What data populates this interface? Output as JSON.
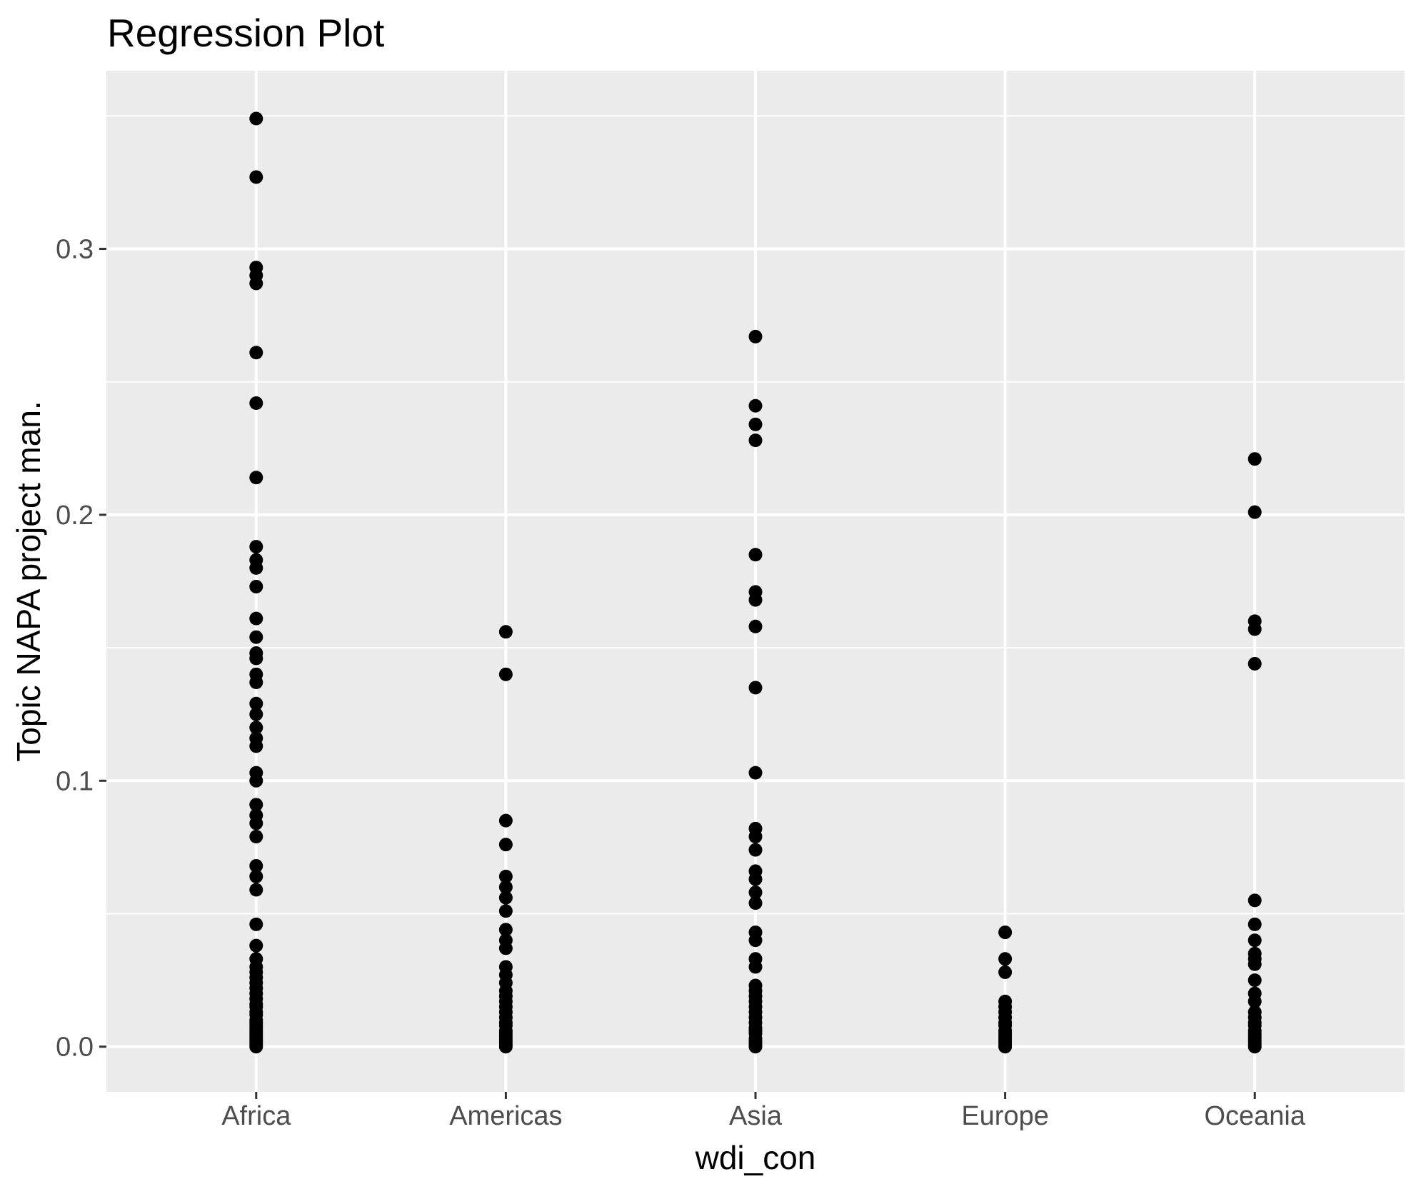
{
  "chart_data": {
    "type": "scatter",
    "title": "Regression Plot",
    "xlabel": "wdi_con",
    "ylabel": "Topic NAPA project man.",
    "categories": [
      "Africa",
      "Americas",
      "Asia",
      "Europe",
      "Oceania"
    ],
    "y_tick_labels": [
      "0.0",
      "0.1",
      "0.2",
      "0.3"
    ],
    "y_tick_values": [
      0,
      0.1,
      0.2,
      0.3
    ],
    "y_minor_tick_values": [
      0.05,
      0.15,
      0.25,
      0.35
    ],
    "ylim": [
      -0.017,
      0.367
    ],
    "grid": "on",
    "legend": "none",
    "style": {
      "panel_background": "#EBEBEB",
      "grid_color": "#FFFFFF",
      "point_color": "#000000",
      "tick_label_color": "#4D4D4D",
      "tick_mark_color": "#333333",
      "axis_title_color": "#000000"
    },
    "series": [
      {
        "name": "Africa",
        "values": [
          0.349,
          0.327,
          0.293,
          0.29,
          0.287,
          0.261,
          0.242,
          0.214,
          0.188,
          0.183,
          0.18,
          0.173,
          0.161,
          0.154,
          0.148,
          0.146,
          0.14,
          0.137,
          0.129,
          0.125,
          0.12,
          0.116,
          0.113,
          0.103,
          0.1,
          0.091,
          0.087,
          0.084,
          0.079,
          0.068,
          0.064,
          0.059,
          0.046,
          0.038,
          0.033,
          0.03,
          0.028,
          0.026,
          0.024,
          0.022,
          0.02,
          0.018,
          0.016,
          0.015,
          0.013,
          0.012,
          0.01,
          0.009,
          0.008,
          0.007,
          0.006,
          0.005,
          0.004,
          0.003,
          0.002,
          0.001,
          0.0
        ]
      },
      {
        "name": "Americas",
        "values": [
          0.156,
          0.14,
          0.085,
          0.076,
          0.064,
          0.06,
          0.056,
          0.051,
          0.044,
          0.04,
          0.037,
          0.03,
          0.027,
          0.024,
          0.021,
          0.019,
          0.017,
          0.015,
          0.013,
          0.011,
          0.009,
          0.008,
          0.006,
          0.005,
          0.004,
          0.003,
          0.002,
          0.001,
          0.0
        ]
      },
      {
        "name": "Asia",
        "values": [
          0.267,
          0.241,
          0.234,
          0.228,
          0.185,
          0.171,
          0.168,
          0.158,
          0.135,
          0.103,
          0.082,
          0.079,
          0.074,
          0.066,
          0.063,
          0.058,
          0.054,
          0.043,
          0.04,
          0.033,
          0.03,
          0.023,
          0.021,
          0.019,
          0.017,
          0.015,
          0.013,
          0.011,
          0.009,
          0.007,
          0.006,
          0.005,
          0.003,
          0.002,
          0.001,
          0.0
        ]
      },
      {
        "name": "Europe",
        "values": [
          0.043,
          0.033,
          0.028,
          0.017,
          0.015,
          0.013,
          0.011,
          0.009,
          0.008,
          0.006,
          0.005,
          0.004,
          0.003,
          0.002,
          0.001,
          0.0
        ]
      },
      {
        "name": "Oceania",
        "values": [
          0.221,
          0.201,
          0.16,
          0.157,
          0.144,
          0.055,
          0.046,
          0.04,
          0.035,
          0.033,
          0.031,
          0.025,
          0.02,
          0.017,
          0.013,
          0.011,
          0.009,
          0.008,
          0.006,
          0.005,
          0.004,
          0.003,
          0.002,
          0.001,
          0.0
        ]
      }
    ]
  }
}
